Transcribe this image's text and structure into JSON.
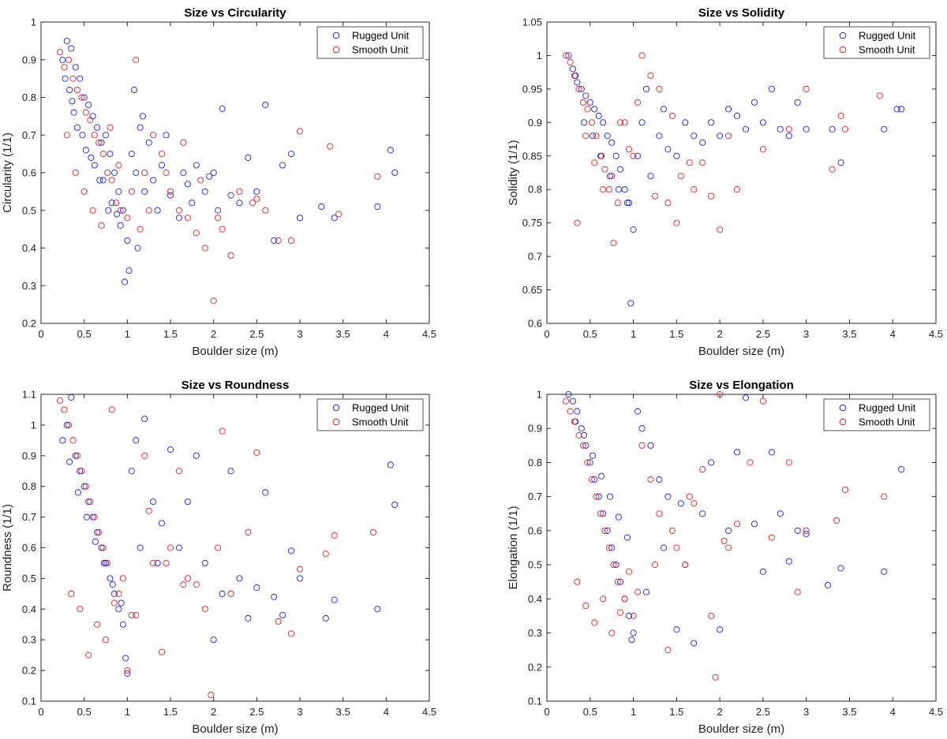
{
  "colors": {
    "rugged": "#2020d8",
    "smooth": "#e0202a"
  },
  "chart_data": [
    {
      "type": "scatter",
      "title": "Size vs Circularity",
      "xlabel": "Boulder size (m)",
      "ylabel": "Circularity (1/1)",
      "xlim": [
        0,
        4.5
      ],
      "ylim": [
        0.2,
        1
      ],
      "xticks": [
        0,
        0.5,
        1,
        1.5,
        2,
        2.5,
        3,
        3.5,
        4,
        4.5
      ],
      "yticks": [
        0.2,
        0.3,
        0.4,
        0.5,
        0.6,
        0.7,
        0.8,
        0.9,
        1
      ],
      "tick_labels_x": [
        "0",
        "0.5",
        "1",
        "1.5",
        "2",
        "2.5",
        "3",
        "3.5",
        "4",
        "4.5"
      ],
      "tick_labels_y": [
        "0.2",
        "0.3",
        "0.4",
        "0.5",
        "0.6",
        "0.7",
        "0.8",
        "0.9",
        "1"
      ],
      "grid": false,
      "legend": "top-right",
      "series": [
        {
          "name": "Rugged Unit",
          "x": [
            0.25,
            0.3,
            0.35,
            0.4,
            0.45,
            0.5,
            0.55,
            0.6,
            0.65,
            0.7,
            0.75,
            0.8,
            0.85,
            0.9,
            0.95,
            1.0,
            1.05,
            1.1,
            1.15,
            1.2,
            1.25,
            1.3,
            1.35,
            1.4,
            1.45,
            1.5,
            1.6,
            1.65,
            1.7,
            1.75,
            1.8,
            1.9,
            1.95,
            2.0,
            2.05,
            2.1,
            2.2,
            2.3,
            2.4,
            2.5,
            2.6,
            2.7,
            2.8,
            2.9,
            3.0,
            3.25,
            3.4,
            3.9,
            4.05,
            4.1,
            0.33,
            0.42,
            0.52,
            0.62,
            0.72,
            0.82,
            0.92,
            0.97,
            1.02,
            1.12,
            0.38,
            0.48,
            0.58,
            0.68,
            0.78,
            0.88,
            1.08,
            1.18,
            0.28,
            0.36
          ],
          "y": [
            0.9,
            0.95,
            0.93,
            0.88,
            0.85,
            0.8,
            0.78,
            0.75,
            0.72,
            0.68,
            0.7,
            0.65,
            0.6,
            0.55,
            0.5,
            0.42,
            0.65,
            0.6,
            0.72,
            0.55,
            0.68,
            0.58,
            0.5,
            0.62,
            0.7,
            0.54,
            0.48,
            0.6,
            0.57,
            0.52,
            0.62,
            0.55,
            0.59,
            0.6,
            0.5,
            0.77,
            0.54,
            0.52,
            0.64,
            0.55,
            0.78,
            0.42,
            0.62,
            0.65,
            0.48,
            0.51,
            0.48,
            0.51,
            0.66,
            0.6,
            0.82,
            0.72,
            0.66,
            0.62,
            0.58,
            0.52,
            0.46,
            0.31,
            0.34,
            0.4,
            0.76,
            0.7,
            0.64,
            0.58,
            0.5,
            0.49,
            0.82,
            0.75,
            0.85,
            0.79
          ]
        },
        {
          "name": "Smooth Unit",
          "x": [
            0.22,
            0.27,
            0.32,
            0.37,
            0.42,
            0.47,
            0.52,
            0.57,
            0.62,
            0.67,
            0.72,
            0.77,
            0.82,
            0.87,
            0.92,
            1.0,
            1.1,
            1.15,
            1.2,
            1.3,
            1.4,
            1.5,
            1.6,
            1.7,
            1.8,
            1.9,
            2.0,
            2.1,
            2.2,
            2.3,
            2.45,
            2.6,
            2.75,
            2.9,
            3.0,
            3.35,
            3.45,
            3.9,
            0.3,
            0.4,
            0.5,
            0.6,
            0.7,
            0.8,
            0.9,
            1.05,
            1.25,
            1.45,
            1.65,
            1.85,
            2.05,
            2.5
          ],
          "y": [
            0.92,
            0.88,
            0.9,
            0.85,
            0.82,
            0.8,
            0.76,
            0.74,
            0.7,
            0.68,
            0.65,
            0.6,
            0.58,
            0.52,
            0.5,
            0.48,
            0.9,
            0.45,
            0.6,
            0.7,
            0.65,
            0.55,
            0.5,
            0.48,
            0.44,
            0.4,
            0.26,
            0.45,
            0.38,
            0.55,
            0.52,
            0.5,
            0.42,
            0.42,
            0.71,
            0.67,
            0.49,
            0.59,
            0.7,
            0.6,
            0.55,
            0.5,
            0.46,
            0.72,
            0.62,
            0.55,
            0.5,
            0.6,
            0.68,
            0.58,
            0.48,
            0.53
          ]
        }
      ]
    },
    {
      "type": "scatter",
      "title": "Size vs Solidity",
      "xlabel": "Boulder size (m)",
      "ylabel": "Solidity (1/1)",
      "xlim": [
        0,
        4.5
      ],
      "ylim": [
        0.6,
        1.05
      ],
      "xticks": [
        0,
        0.5,
        1,
        1.5,
        2,
        2.5,
        3,
        3.5,
        4,
        4.5
      ],
      "yticks": [
        0.6,
        0.65,
        0.7,
        0.75,
        0.8,
        0.85,
        0.9,
        0.95,
        1,
        1.05
      ],
      "tick_labels_x": [
        "0",
        "0.5",
        "1",
        "1.5",
        "2",
        "2.5",
        "3",
        "3.5",
        "4",
        "4.5"
      ],
      "tick_labels_y": [
        "0.6",
        "0.65",
        "0.7",
        "0.75",
        "0.8",
        "0.85",
        "0.9",
        "0.95",
        "1",
        "1.05"
      ],
      "grid": false,
      "legend": "top-right",
      "series": [
        {
          "name": "Rugged Unit",
          "x": [
            0.25,
            0.3,
            0.35,
            0.4,
            0.45,
            0.5,
            0.55,
            0.6,
            0.65,
            0.7,
            0.75,
            0.8,
            0.85,
            0.9,
            0.95,
            1.0,
            1.05,
            1.1,
            1.2,
            1.3,
            1.4,
            1.5,
            1.6,
            1.7,
            1.8,
            1.9,
            2.0,
            2.1,
            2.2,
            2.3,
            2.4,
            2.5,
            2.6,
            2.7,
            2.8,
            2.9,
            3.0,
            3.3,
            3.4,
            3.9,
            4.05,
            4.1,
            0.33,
            0.43,
            0.53,
            0.63,
            0.73,
            0.83,
            0.93,
            0.97,
            1.15,
            1.35
          ],
          "y": [
            1.0,
            0.98,
            0.96,
            0.95,
            0.94,
            0.93,
            0.92,
            0.91,
            0.9,
            0.88,
            0.87,
            0.85,
            0.83,
            0.8,
            0.78,
            0.74,
            0.85,
            0.9,
            0.82,
            0.88,
            0.86,
            0.85,
            0.9,
            0.88,
            0.87,
            0.9,
            0.88,
            0.92,
            0.91,
            0.89,
            0.93,
            0.9,
            0.95,
            0.89,
            0.88,
            0.93,
            0.89,
            0.89,
            0.84,
            0.89,
            0.92,
            0.92,
            0.97,
            0.9,
            0.88,
            0.85,
            0.82,
            0.8,
            0.78,
            0.63,
            0.95,
            0.92
          ]
        },
        {
          "name": "Smooth Unit",
          "x": [
            0.22,
            0.27,
            0.32,
            0.37,
            0.42,
            0.47,
            0.52,
            0.57,
            0.62,
            0.67,
            0.72,
            0.77,
            0.82,
            0.9,
            1.0,
            1.1,
            1.2,
            1.3,
            1.4,
            1.5,
            1.55,
            1.7,
            1.8,
            1.9,
            2.0,
            2.1,
            2.2,
            2.5,
            2.8,
            3.0,
            3.3,
            3.4,
            3.45,
            3.85,
            0.35,
            0.45,
            0.55,
            0.65,
            0.75,
            0.85,
            0.95,
            1.05,
            1.25,
            1.45,
            1.65
          ],
          "y": [
            1.0,
            0.99,
            0.97,
            0.95,
            0.93,
            0.92,
            0.9,
            0.88,
            0.85,
            0.83,
            0.8,
            0.72,
            0.78,
            0.9,
            0.85,
            1.0,
            0.97,
            0.95,
            0.78,
            0.75,
            0.82,
            0.8,
            0.84,
            0.79,
            0.74,
            0.88,
            0.8,
            0.86,
            0.89,
            0.95,
            0.83,
            0.91,
            0.89,
            0.94,
            0.75,
            0.88,
            0.84,
            0.8,
            0.82,
            0.9,
            0.86,
            0.93,
            0.79,
            0.91,
            0.84
          ]
        }
      ]
    },
    {
      "type": "scatter",
      "title": "Size vs Roundness",
      "xlabel": "Boulder size (m)",
      "ylabel": "Roundness (1/1)",
      "xlim": [
        0,
        4.5
      ],
      "ylim": [
        0.1,
        1.1
      ],
      "xticks": [
        0,
        0.5,
        1,
        1.5,
        2,
        2.5,
        3,
        3.5,
        4,
        4.5
      ],
      "yticks": [
        0.1,
        0.2,
        0.3,
        0.4,
        0.5,
        0.6,
        0.7,
        0.8,
        0.9,
        1,
        1.1
      ],
      "tick_labels_x": [
        "0",
        "0.5",
        "1",
        "1.5",
        "2",
        "2.5",
        "3",
        "3.5",
        "4",
        "4.5"
      ],
      "tick_labels_y": [
        "0.1",
        "0.2",
        "0.3",
        "0.4",
        "0.5",
        "0.6",
        "0.7",
        "0.8",
        "0.9",
        "1",
        "1.1"
      ],
      "grid": false,
      "legend": "top-right",
      "series": [
        {
          "name": "Rugged Unit",
          "x": [
            0.25,
            0.3,
            0.35,
            0.4,
            0.45,
            0.5,
            0.55,
            0.6,
            0.65,
            0.7,
            0.75,
            0.8,
            0.85,
            0.9,
            0.95,
            1.0,
            1.05,
            1.1,
            1.2,
            1.3,
            1.4,
            1.5,
            1.6,
            1.7,
            1.8,
            1.9,
            2.0,
            2.1,
            2.2,
            2.3,
            2.4,
            2.5,
            2.6,
            2.7,
            2.8,
            2.9,
            3.0,
            3.3,
            3.4,
            3.9,
            4.05,
            4.1,
            0.33,
            0.43,
            0.53,
            0.63,
            0.73,
            0.83,
            0.93,
            0.98,
            1.15,
            1.35
          ],
          "y": [
            0.95,
            1.0,
            1.09,
            0.9,
            0.85,
            0.8,
            0.75,
            0.7,
            0.65,
            0.6,
            0.55,
            0.5,
            0.45,
            0.4,
            0.35,
            0.19,
            0.85,
            0.95,
            1.02,
            0.75,
            0.68,
            0.92,
            0.6,
            0.75,
            0.9,
            0.55,
            0.3,
            0.45,
            0.85,
            0.5,
            0.37,
            0.47,
            0.78,
            0.44,
            0.38,
            0.59,
            0.5,
            0.37,
            0.43,
            0.4,
            0.87,
            0.74,
            0.88,
            0.78,
            0.7,
            0.62,
            0.55,
            0.48,
            0.42,
            0.24,
            0.6,
            0.55
          ]
        },
        {
          "name": "Smooth Unit",
          "x": [
            0.22,
            0.27,
            0.32,
            0.37,
            0.42,
            0.47,
            0.52,
            0.57,
            0.62,
            0.67,
            0.72,
            0.77,
            0.82,
            0.9,
            1.0,
            1.1,
            1.2,
            1.3,
            1.4,
            1.5,
            1.6,
            1.7,
            1.8,
            1.9,
            1.97,
            2.1,
            2.2,
            2.4,
            2.5,
            2.75,
            2.9,
            3.0,
            3.3,
            3.4,
            3.85,
            0.35,
            0.45,
            0.55,
            0.65,
            0.75,
            0.85,
            0.95,
            1.05,
            1.25,
            1.45,
            1.65,
            2.05
          ],
          "y": [
            1.08,
            1.05,
            1.0,
            0.95,
            0.9,
            0.85,
            0.8,
            0.75,
            0.7,
            0.65,
            0.6,
            0.55,
            1.05,
            0.45,
            0.2,
            0.38,
            0.9,
            0.55,
            0.26,
            0.6,
            0.85,
            0.5,
            0.48,
            0.4,
            0.12,
            0.98,
            0.45,
            0.65,
            0.91,
            0.36,
            0.32,
            0.53,
            0.58,
            0.64,
            0.65,
            0.45,
            0.4,
            0.25,
            0.35,
            0.3,
            0.42,
            0.5,
            0.38,
            0.72,
            0.55,
            0.48,
            0.6
          ]
        }
      ]
    },
    {
      "type": "scatter",
      "title": "Size vs Elongation",
      "xlabel": "Boulder size (m)",
      "ylabel": "Elongation (1/1)",
      "xlim": [
        0,
        4.5
      ],
      "ylim": [
        0.1,
        1
      ],
      "xticks": [
        0,
        0.5,
        1,
        1.5,
        2,
        2.5,
        3,
        3.5,
        4,
        4.5
      ],
      "yticks": [
        0.1,
        0.2,
        0.3,
        0.4,
        0.5,
        0.6,
        0.7,
        0.8,
        0.9,
        1
      ],
      "tick_labels_x": [
        "0",
        "0.5",
        "1",
        "1.5",
        "2",
        "2.5",
        "3",
        "3.5",
        "4",
        "4.5"
      ],
      "tick_labels_y": [
        "0.1",
        "0.2",
        "0.3",
        "0.4",
        "0.5",
        "0.6",
        "0.7",
        "0.8",
        "0.9",
        "1"
      ],
      "grid": false,
      "legend": "top-right",
      "series": [
        {
          "name": "Rugged Unit",
          "x": [
            0.25,
            0.3,
            0.35,
            0.4,
            0.45,
            0.5,
            0.55,
            0.6,
            0.65,
            0.7,
            0.75,
            0.8,
            0.85,
            0.9,
            0.95,
            1.0,
            1.05,
            1.1,
            1.2,
            1.3,
            1.4,
            1.5,
            1.6,
            1.7,
            1.8,
            1.9,
            2.0,
            2.1,
            2.2,
            2.3,
            2.4,
            2.5,
            2.6,
            2.7,
            2.8,
            2.9,
            3.0,
            3.25,
            3.4,
            3.9,
            4.1,
            0.33,
            0.43,
            0.53,
            0.63,
            0.73,
            0.83,
            0.93,
            0.98,
            1.15,
            1.35,
            1.55
          ],
          "y": [
            1.0,
            0.98,
            0.95,
            0.9,
            0.85,
            0.8,
            0.75,
            0.7,
            0.65,
            0.6,
            0.55,
            0.5,
            0.45,
            0.4,
            0.35,
            0.3,
            0.95,
            0.9,
            0.85,
            0.75,
            0.7,
            0.31,
            0.5,
            0.27,
            0.65,
            0.8,
            0.31,
            0.6,
            0.83,
            0.99,
            0.62,
            0.48,
            0.83,
            0.65,
            0.51,
            0.6,
            0.59,
            0.44,
            0.49,
            0.48,
            0.78,
            0.92,
            0.88,
            0.82,
            0.76,
            0.7,
            0.64,
            0.58,
            0.28,
            0.42,
            0.55,
            0.68
          ]
        },
        {
          "name": "Smooth Unit",
          "x": [
            0.22,
            0.27,
            0.32,
            0.37,
            0.42,
            0.47,
            0.52,
            0.57,
            0.62,
            0.67,
            0.72,
            0.77,
            0.82,
            0.9,
            1.0,
            1.1,
            1.2,
            1.3,
            1.4,
            1.5,
            1.6,
            1.7,
            1.8,
            1.9,
            1.95,
            2.0,
            2.1,
            2.2,
            2.35,
            2.5,
            2.6,
            2.8,
            2.9,
            3.0,
            3.35,
            3.45,
            3.9,
            0.35,
            0.45,
            0.55,
            0.65,
            0.75,
            0.85,
            0.95,
            1.05,
            1.25,
            1.45,
            1.65,
            2.05
          ],
          "y": [
            0.98,
            0.95,
            0.92,
            0.88,
            0.85,
            0.8,
            0.75,
            0.7,
            0.65,
            0.6,
            0.55,
            0.5,
            0.45,
            0.4,
            0.35,
            0.85,
            0.75,
            0.65,
            0.25,
            0.55,
            0.5,
            0.68,
            0.78,
            0.35,
            0.17,
            1.0,
            0.55,
            0.62,
            0.8,
            0.98,
            0.58,
            0.8,
            0.42,
            0.6,
            0.63,
            0.72,
            0.7,
            0.45,
            0.38,
            0.33,
            0.4,
            0.3,
            0.36,
            0.48,
            0.42,
            0.5,
            0.6,
            0.7,
            0.57
          ]
        }
      ]
    }
  ]
}
